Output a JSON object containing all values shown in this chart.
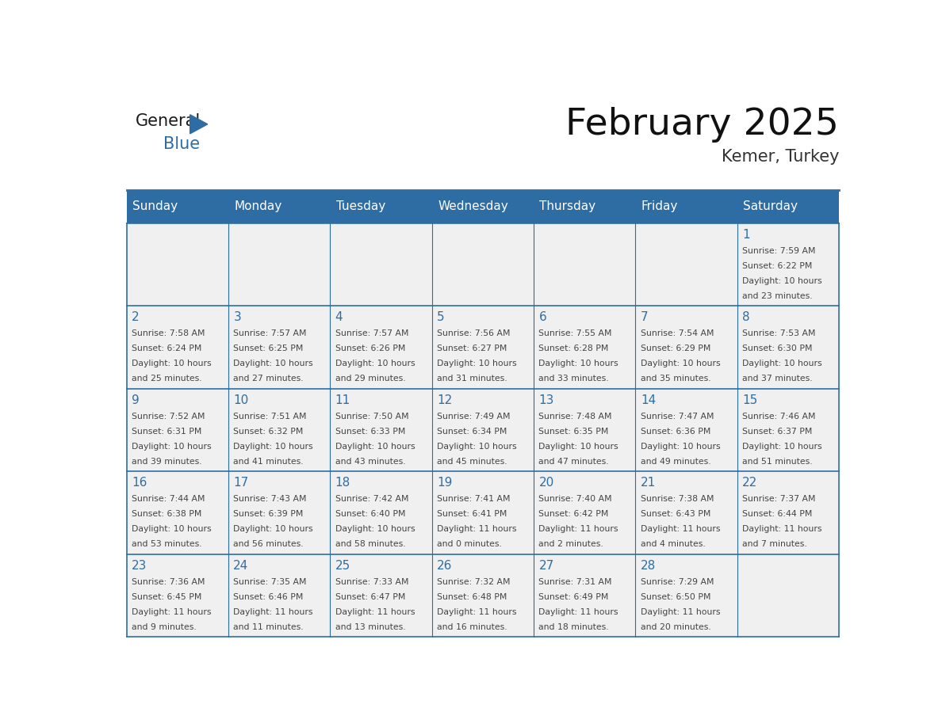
{
  "title": "February 2025",
  "subtitle": "Kemer, Turkey",
  "header_bg": "#2E6DA4",
  "header_text_color": "#FFFFFF",
  "cell_bg_light": "#F0F0F0",
  "border_color": "#2E6DA4",
  "text_color": "#444444",
  "day_number_color": "#2E6DA4",
  "logo_black": "#1a1a1a",
  "logo_blue": "#2E6DA4",
  "days_of_week": [
    "Sunday",
    "Monday",
    "Tuesday",
    "Wednesday",
    "Thursday",
    "Friday",
    "Saturday"
  ],
  "weeks": [
    [
      {
        "day": "",
        "sunrise": "",
        "sunset": "",
        "daylight_line1": "",
        "daylight_line2": ""
      },
      {
        "day": "",
        "sunrise": "",
        "sunset": "",
        "daylight_line1": "",
        "daylight_line2": ""
      },
      {
        "day": "",
        "sunrise": "",
        "sunset": "",
        "daylight_line1": "",
        "daylight_line2": ""
      },
      {
        "day": "",
        "sunrise": "",
        "sunset": "",
        "daylight_line1": "",
        "daylight_line2": ""
      },
      {
        "day": "",
        "sunrise": "",
        "sunset": "",
        "daylight_line1": "",
        "daylight_line2": ""
      },
      {
        "day": "",
        "sunrise": "",
        "sunset": "",
        "daylight_line1": "",
        "daylight_line2": ""
      },
      {
        "day": "1",
        "sunrise": "7:59 AM",
        "sunset": "6:22 PM",
        "daylight_line1": "Daylight: 10 hours",
        "daylight_line2": "and 23 minutes."
      }
    ],
    [
      {
        "day": "2",
        "sunrise": "7:58 AM",
        "sunset": "6:24 PM",
        "daylight_line1": "Daylight: 10 hours",
        "daylight_line2": "and 25 minutes."
      },
      {
        "day": "3",
        "sunrise": "7:57 AM",
        "sunset": "6:25 PM",
        "daylight_line1": "Daylight: 10 hours",
        "daylight_line2": "and 27 minutes."
      },
      {
        "day": "4",
        "sunrise": "7:57 AM",
        "sunset": "6:26 PM",
        "daylight_line1": "Daylight: 10 hours",
        "daylight_line2": "and 29 minutes."
      },
      {
        "day": "5",
        "sunrise": "7:56 AM",
        "sunset": "6:27 PM",
        "daylight_line1": "Daylight: 10 hours",
        "daylight_line2": "and 31 minutes."
      },
      {
        "day": "6",
        "sunrise": "7:55 AM",
        "sunset": "6:28 PM",
        "daylight_line1": "Daylight: 10 hours",
        "daylight_line2": "and 33 minutes."
      },
      {
        "day": "7",
        "sunrise": "7:54 AM",
        "sunset": "6:29 PM",
        "daylight_line1": "Daylight: 10 hours",
        "daylight_line2": "and 35 minutes."
      },
      {
        "day": "8",
        "sunrise": "7:53 AM",
        "sunset": "6:30 PM",
        "daylight_line1": "Daylight: 10 hours",
        "daylight_line2": "and 37 minutes."
      }
    ],
    [
      {
        "day": "9",
        "sunrise": "7:52 AM",
        "sunset": "6:31 PM",
        "daylight_line1": "Daylight: 10 hours",
        "daylight_line2": "and 39 minutes."
      },
      {
        "day": "10",
        "sunrise": "7:51 AM",
        "sunset": "6:32 PM",
        "daylight_line1": "Daylight: 10 hours",
        "daylight_line2": "and 41 minutes."
      },
      {
        "day": "11",
        "sunrise": "7:50 AM",
        "sunset": "6:33 PM",
        "daylight_line1": "Daylight: 10 hours",
        "daylight_line2": "and 43 minutes."
      },
      {
        "day": "12",
        "sunrise": "7:49 AM",
        "sunset": "6:34 PM",
        "daylight_line1": "Daylight: 10 hours",
        "daylight_line2": "and 45 minutes."
      },
      {
        "day": "13",
        "sunrise": "7:48 AM",
        "sunset": "6:35 PM",
        "daylight_line1": "Daylight: 10 hours",
        "daylight_line2": "and 47 minutes."
      },
      {
        "day": "14",
        "sunrise": "7:47 AM",
        "sunset": "6:36 PM",
        "daylight_line1": "Daylight: 10 hours",
        "daylight_line2": "and 49 minutes."
      },
      {
        "day": "15",
        "sunrise": "7:46 AM",
        "sunset": "6:37 PM",
        "daylight_line1": "Daylight: 10 hours",
        "daylight_line2": "and 51 minutes."
      }
    ],
    [
      {
        "day": "16",
        "sunrise": "7:44 AM",
        "sunset": "6:38 PM",
        "daylight_line1": "Daylight: 10 hours",
        "daylight_line2": "and 53 minutes."
      },
      {
        "day": "17",
        "sunrise": "7:43 AM",
        "sunset": "6:39 PM",
        "daylight_line1": "Daylight: 10 hours",
        "daylight_line2": "and 56 minutes."
      },
      {
        "day": "18",
        "sunrise": "7:42 AM",
        "sunset": "6:40 PM",
        "daylight_line1": "Daylight: 10 hours",
        "daylight_line2": "and 58 minutes."
      },
      {
        "day": "19",
        "sunrise": "7:41 AM",
        "sunset": "6:41 PM",
        "daylight_line1": "Daylight: 11 hours",
        "daylight_line2": "and 0 minutes."
      },
      {
        "day": "20",
        "sunrise": "7:40 AM",
        "sunset": "6:42 PM",
        "daylight_line1": "Daylight: 11 hours",
        "daylight_line2": "and 2 minutes."
      },
      {
        "day": "21",
        "sunrise": "7:38 AM",
        "sunset": "6:43 PM",
        "daylight_line1": "Daylight: 11 hours",
        "daylight_line2": "and 4 minutes."
      },
      {
        "day": "22",
        "sunrise": "7:37 AM",
        "sunset": "6:44 PM",
        "daylight_line1": "Daylight: 11 hours",
        "daylight_line2": "and 7 minutes."
      }
    ],
    [
      {
        "day": "23",
        "sunrise": "7:36 AM",
        "sunset": "6:45 PM",
        "daylight_line1": "Daylight: 11 hours",
        "daylight_line2": "and 9 minutes."
      },
      {
        "day": "24",
        "sunrise": "7:35 AM",
        "sunset": "6:46 PM",
        "daylight_line1": "Daylight: 11 hours",
        "daylight_line2": "and 11 minutes."
      },
      {
        "day": "25",
        "sunrise": "7:33 AM",
        "sunset": "6:47 PM",
        "daylight_line1": "Daylight: 11 hours",
        "daylight_line2": "and 13 minutes."
      },
      {
        "day": "26",
        "sunrise": "7:32 AM",
        "sunset": "6:48 PM",
        "daylight_line1": "Daylight: 11 hours",
        "daylight_line2": "and 16 minutes."
      },
      {
        "day": "27",
        "sunrise": "7:31 AM",
        "sunset": "6:49 PM",
        "daylight_line1": "Daylight: 11 hours",
        "daylight_line2": "and 18 minutes."
      },
      {
        "day": "28",
        "sunrise": "7:29 AM",
        "sunset": "6:50 PM",
        "daylight_line1": "Daylight: 11 hours",
        "daylight_line2": "and 20 minutes."
      },
      {
        "day": "",
        "sunrise": "",
        "sunset": "",
        "daylight_line1": "",
        "daylight_line2": ""
      }
    ]
  ]
}
